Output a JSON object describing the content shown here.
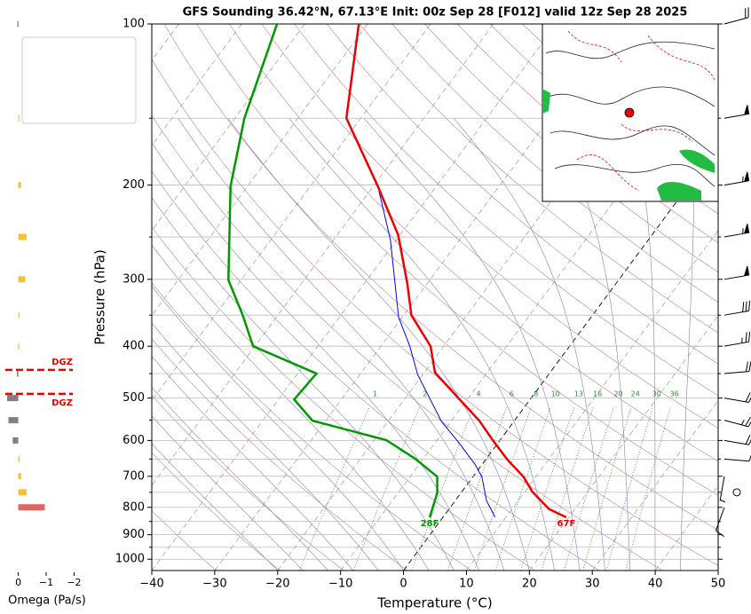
{
  "chart_data": [
    {
      "type": "skewt",
      "title": "GFS Sounding 36.42°N, 67.13°E Init: 00z Sep 28 [F012] valid 12z Sep 28 2025",
      "x_label": "Temperature (°C)",
      "y_label": "Pressure (hPa)",
      "xlim": [
        -40,
        50
      ],
      "xticks": [
        {
          "value": -40,
          "label": "−40"
        },
        {
          "value": -30,
          "label": "−30"
        },
        {
          "value": -20,
          "label": "−20"
        },
        {
          "value": -10,
          "label": "−10"
        },
        0,
        10,
        20,
        30,
        40,
        50
      ],
      "ylim": [
        1050,
        100
      ],
      "yscale": "log",
      "yticks": [
        100,
        200,
        300,
        400,
        500,
        600,
        700,
        800,
        900,
        1000
      ],
      "minor_yticks": [
        150,
        250,
        350,
        450,
        550,
        650,
        750,
        850,
        950
      ],
      "grid": true,
      "reference_lines": [
        {
          "name": "Sat. Mix. Ratio",
          "color": "#2e8b2e",
          "style": "dotted"
        },
        {
          "name": "Dry Adiabats",
          "color": "#c08080",
          "style": "solid"
        },
        {
          "name": "Pseudoadiabats",
          "color": "#8080c0",
          "style": "solid"
        }
      ],
      "mixing_ratio_labels": [
        1,
        2,
        4,
        6,
        8,
        10,
        13,
        16,
        20,
        24,
        30,
        36
      ],
      "series": [
        {
          "name": "Wetbulb",
          "color": "#0000ee",
          "line_width": 1,
          "pressure": [
            835,
            778,
            701,
            664,
            601,
            553,
            452,
            400,
            353,
            253,
            201,
            150
          ],
          "values": [
            8.3,
            5.0,
            1.4,
            -1.2,
            -6.7,
            -11.5,
            -20.8,
            -25.4,
            -30.6,
            -41.0,
            -49.3,
            -62.3
          ]
        },
        {
          "name": "Dewpoint",
          "color": "#009900",
          "line_width": 2.5,
          "end_label": "28F",
          "pressure": [
            835,
            751,
            701,
            649,
            599,
            551,
            503,
            450,
            400,
            350,
            301,
            201,
            150,
            100
          ],
          "values": [
            -2.1,
            -3.8,
            -5.7,
            -11.3,
            -18.1,
            -32.1,
            -37.5,
            -37.0,
            -50.3,
            -55.6,
            -62.0,
            -72.7,
            -78.5,
            -84.4
          ]
        },
        {
          "name": "Temperature",
          "color": "#ee0000",
          "line_width": 2.5,
          "end_label": "67F",
          "pressure": [
            835,
            806,
            748,
            701,
            652,
            601,
            551,
            503,
            448,
            400,
            350,
            306,
            248,
            201,
            150,
            100
          ],
          "values": [
            19.6,
            15.9,
            11.2,
            8.0,
            3.5,
            -1.0,
            -5.6,
            -11.2,
            -18.3,
            -22.1,
            -28.8,
            -33.1,
            -40.3,
            -49.3,
            -62.3,
            -71.4
          ]
        }
      ],
      "dgz": {
        "pressure": [
          443,
          491
        ],
        "label": "DGZ",
        "color": "#ee0000"
      },
      "wind": {
        "pressure": [
          100,
          150,
          200,
          250,
          300,
          350,
          400,
          450,
          500,
          550,
          600,
          650,
          700,
          750,
          800
        ],
        "speed": [
          20,
          50,
          55,
          55,
          50,
          30,
          25,
          20,
          20,
          25,
          20,
          10,
          5,
          0,
          10
        ],
        "direction": [
          75,
          80,
          80,
          80,
          80,
          80,
          80,
          85,
          100,
          105,
          100,
          95,
          190,
          0,
          200
        ]
      }
    },
    {
      "type": "bar",
      "orientation": "horizontal",
      "x_label": "Omega (Pa/s)",
      "xlim": [
        0.4,
        -2.4
      ],
      "xticks": [
        0,
        {
          "value": -1,
          "label": "−1"
        },
        {
          "value": -2,
          "label": "−2"
        }
      ],
      "pressure": [
        100,
        150,
        200,
        250,
        300,
        350,
        400,
        450,
        500,
        550,
        600,
        650,
        700,
        750,
        800
      ],
      "values": [
        0.03,
        -0.02,
        -0.1,
        -0.3,
        -0.25,
        -0.04,
        -0.02,
        0.05,
        0.4,
        0.35,
        0.2,
        -0.05,
        -0.1,
        -0.3,
        -0.95
      ],
      "colors": [
        "#808080",
        "#f4c430",
        "#f4c430",
        "#f4c430",
        "#f4c430",
        "#f4c430",
        "#f4c430",
        "#808080",
        "#808080",
        "#808080",
        "#808080",
        "#f4c430",
        "#f4c430",
        "#f4c430",
        "#e06666"
      ]
    }
  ]
}
